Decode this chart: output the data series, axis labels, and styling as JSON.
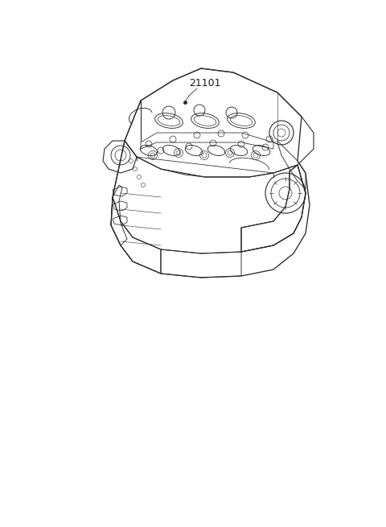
{
  "title": "",
  "part_number": "21101",
  "bg_color": "#ffffff",
  "line_color": "#2a2a2a",
  "line_width": 0.8,
  "label_fontsize": 9,
  "label_color": "#1a1a1a",
  "fig_width": 4.8,
  "fig_height": 6.55,
  "dpi": 100
}
